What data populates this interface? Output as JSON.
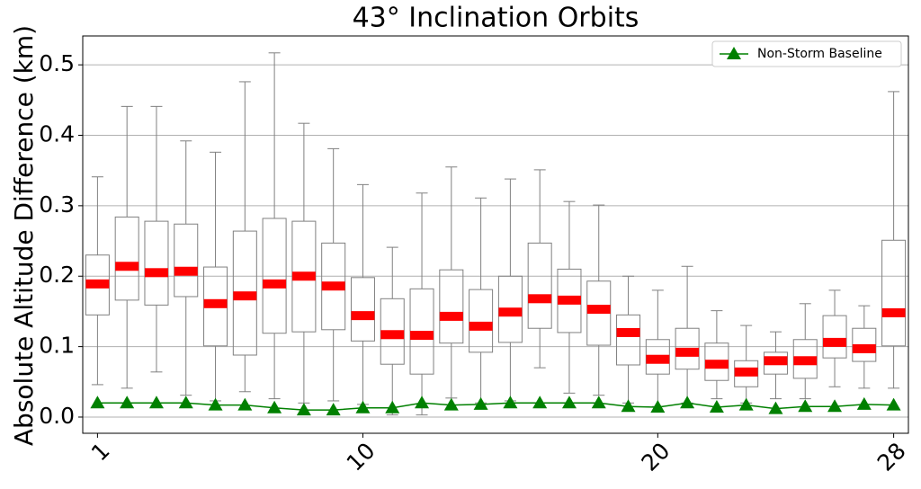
{
  "chart_data": {
    "type": "box",
    "title": "43° Inclination Orbits",
    "ylabel": "Absolute Altitude Difference (km)",
    "x": [
      1,
      2,
      3,
      4,
      5,
      6,
      7,
      8,
      9,
      10,
      11,
      12,
      13,
      14,
      15,
      16,
      17,
      18,
      19,
      20,
      21,
      22,
      23,
      24,
      25,
      26,
      27,
      28
    ],
    "boxes": {
      "color": "#808080",
      "median_color": "#ff0000",
      "whisker_low": [
        0.046,
        0.041,
        0.064,
        0.031,
        0.023,
        0.036,
        0.026,
        0.02,
        0.023,
        0.018,
        0.003,
        0.003,
        0.027,
        0.02,
        0.023,
        0.07,
        0.034,
        0.031,
        0.02,
        0.015,
        0.02,
        0.026,
        0.02,
        0.026,
        0.026,
        0.043,
        0.041,
        0.041
      ],
      "q1": [
        0.145,
        0.166,
        0.159,
        0.171,
        0.101,
        0.088,
        0.119,
        0.121,
        0.124,
        0.108,
        0.075,
        0.061,
        0.105,
        0.092,
        0.106,
        0.126,
        0.12,
        0.102,
        0.074,
        0.061,
        0.068,
        0.052,
        0.043,
        0.061,
        0.055,
        0.084,
        0.079,
        0.101
      ],
      "median": [
        0.189,
        0.214,
        0.205,
        0.207,
        0.161,
        0.172,
        0.189,
        0.2,
        0.186,
        0.144,
        0.117,
        0.116,
        0.143,
        0.129,
        0.149,
        0.168,
        0.166,
        0.153,
        0.12,
        0.082,
        0.092,
        0.075,
        0.064,
        0.08,
        0.08,
        0.106,
        0.097,
        0.148
      ],
      "q3": [
        0.23,
        0.284,
        0.278,
        0.274,
        0.213,
        0.264,
        0.282,
        0.278,
        0.247,
        0.198,
        0.168,
        0.182,
        0.209,
        0.181,
        0.2,
        0.247,
        0.21,
        0.193,
        0.145,
        0.11,
        0.126,
        0.105,
        0.08,
        0.092,
        0.11,
        0.144,
        0.126,
        0.251
      ],
      "whisker_high": [
        0.341,
        0.441,
        0.441,
        0.392,
        0.376,
        0.476,
        0.517,
        0.417,
        0.381,
        0.33,
        0.241,
        0.318,
        0.355,
        0.311,
        0.338,
        0.351,
        0.306,
        0.301,
        0.2,
        0.18,
        0.214,
        0.151,
        0.13,
        0.121,
        0.161,
        0.18,
        0.158,
        0.462
      ]
    },
    "series": [
      {
        "name": "Non-Storm Baseline",
        "color": "#008000",
        "values": [
          0.02,
          0.02,
          0.02,
          0.02,
          0.017,
          0.017,
          0.013,
          0.01,
          0.01,
          0.013,
          0.013,
          0.02,
          0.017,
          0.018,
          0.02,
          0.02,
          0.02,
          0.02,
          0.015,
          0.014,
          0.02,
          0.014,
          0.017,
          0.012,
          0.015,
          0.015,
          0.018,
          0.017
        ]
      }
    ],
    "xlim": [
      0.5,
      28.5
    ],
    "xticks": [
      1,
      10,
      20,
      28
    ],
    "ylim": [
      -0.023,
      0.541
    ],
    "yticks": [
      {
        "value": 0,
        "label": "0.0"
      },
      0.1,
      0.2,
      0.3,
      0.4,
      0.5
    ],
    "grid": true,
    "legend": "upper right"
  }
}
